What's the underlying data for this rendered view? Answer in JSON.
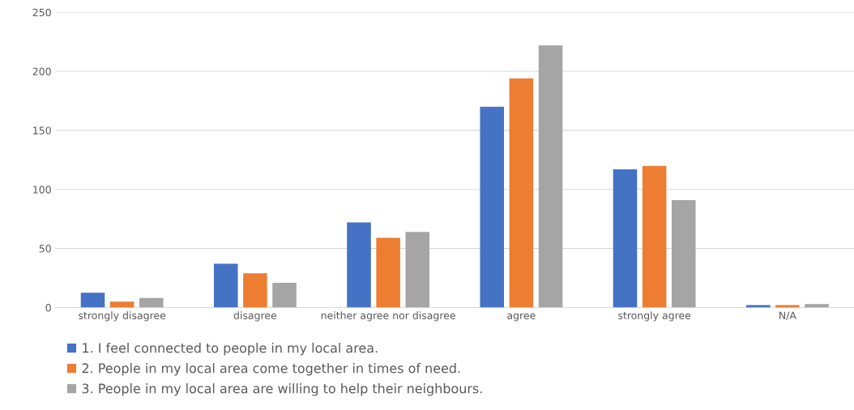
{
  "chart_data": {
    "type": "bar",
    "categories": [
      "strongly disagree",
      "disagree",
      "neither agree nor disagree",
      "agree",
      "strongly agree",
      "N/A"
    ],
    "series": [
      {
        "name": "1. I feel connected to people in my local area.",
        "color": "#4472c4",
        "values": [
          12.5,
          37,
          72,
          170,
          117,
          2
        ]
      },
      {
        "name": "2. People in my local area come together in times of need.",
        "color": "#ed7d31",
        "values": [
          5,
          29,
          59,
          194,
          120,
          2
        ]
      },
      {
        "name": "3. People in my local area are willing to help their neighbours.",
        "color": "#a5a5a5",
        "values": [
          8,
          21,
          64,
          222,
          91,
          3
        ]
      }
    ],
    "ylim": [
      0,
      250
    ],
    "yticks": [
      0,
      50,
      100,
      150,
      200,
      250
    ],
    "grid": "y",
    "legend": "bottom left"
  }
}
